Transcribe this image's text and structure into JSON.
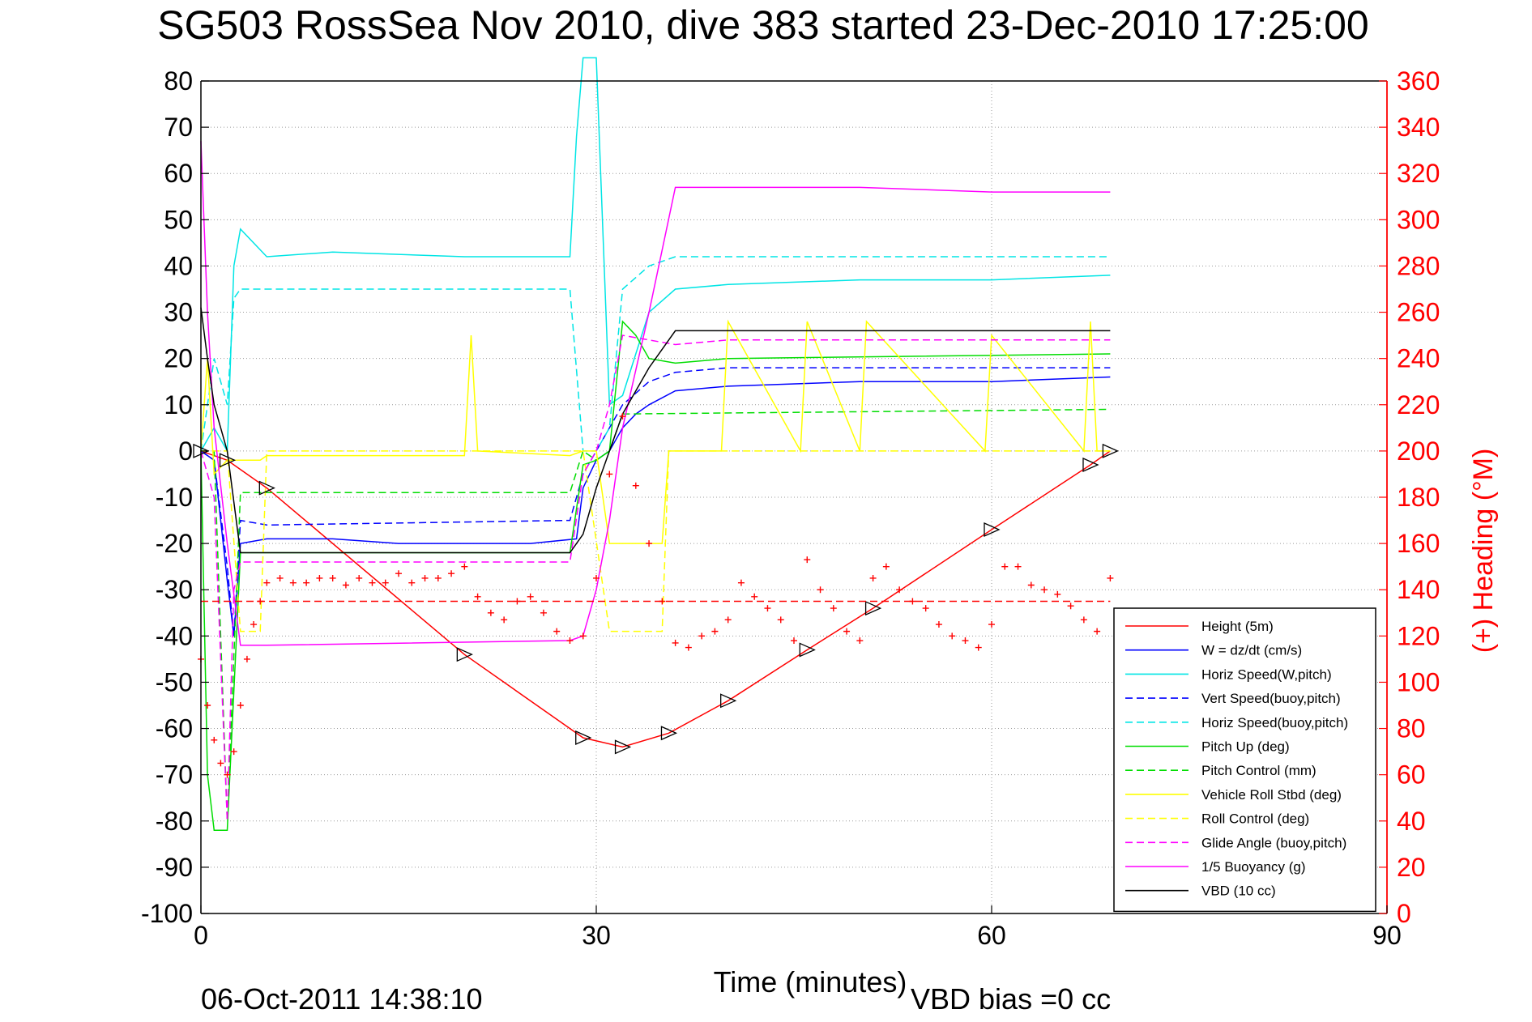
{
  "title": "SG503 RossSea Nov 2010, dive 383 started 23-Dec-2010 17:25:00",
  "footer": {
    "timestamp": "06-Oct-2011 14:38:10",
    "vbd_bias": "VBD bias =0 cc"
  },
  "chart_data": {
    "type": "line",
    "xlabel": "Time (minutes)",
    "ylabel_left": "",
    "ylabel_right": "(+) Heading (°M)",
    "xlim": [
      0,
      90
    ],
    "ylim_left": [
      -100,
      80
    ],
    "ylim_right": [
      0,
      360
    ],
    "xticks": [
      0,
      30,
      60,
      90
    ],
    "yticks_left": [
      80,
      70,
      60,
      50,
      40,
      30,
      20,
      10,
      0,
      -10,
      -20,
      -30,
      -40,
      -50,
      -60,
      -70,
      -80,
      -90,
      -100
    ],
    "yticks_right": [
      360,
      340,
      320,
      300,
      280,
      260,
      240,
      220,
      200,
      180,
      160,
      140,
      120,
      100,
      80,
      60,
      40,
      20,
      0
    ],
    "grid": true,
    "legend_position": "bottom-right",
    "colors": {
      "red": "#ff0000",
      "blue": "#0000ff",
      "cyan": "#00e5e5",
      "green": "#00dd00",
      "yellow": "#ffff00",
      "magenta": "#ff00ff",
      "black": "#000000"
    },
    "series": [
      {
        "name": "Height (5m)",
        "color": "#ff0000",
        "style": "solid",
        "marker": "triangle",
        "x": [
          0,
          2,
          5,
          20,
          29,
          32,
          35.5,
          40,
          46,
          51,
          60,
          67.5,
          69
        ],
        "y": [
          0,
          -2,
          -8,
          -44,
          -62,
          -64,
          -61,
          -54,
          -43,
          -34,
          -17,
          -3,
          0
        ]
      },
      {
        "name": "W = dz/dt (cm/s)",
        "color": "#0000ff",
        "style": "solid",
        "x": [
          0,
          1,
          2,
          2.5,
          3,
          5,
          10,
          15,
          20,
          25,
          28.5,
          29,
          30,
          31,
          32,
          33,
          34,
          36,
          40,
          50,
          60,
          69
        ],
        "y": [
          0,
          -2,
          -28,
          -40,
          -20,
          -19,
          -19,
          -20,
          -20,
          -20,
          -19,
          -8,
          -2,
          0,
          5,
          8,
          10,
          13,
          14,
          15,
          15,
          16
        ]
      },
      {
        "name": "Horiz Speed(W,pitch)",
        "color": "#00e5e5",
        "style": "solid",
        "x": [
          0,
          1,
          2,
          2.5,
          3,
          5,
          10,
          20,
          28,
          28.5,
          29,
          30,
          31,
          32,
          34,
          36,
          40,
          50,
          60,
          69
        ],
        "y": [
          0,
          5,
          0,
          40,
          48,
          42,
          43,
          42,
          42,
          68,
          85,
          85,
          10,
          12,
          30,
          35,
          36,
          37,
          37,
          38
        ]
      },
      {
        "name": "Vert Speed(buoy,pitch)",
        "color": "#0000ff",
        "style": "dashed",
        "x": [
          0,
          1,
          2,
          2.5,
          3,
          5,
          28,
          29,
          30,
          31,
          32,
          34,
          36,
          40,
          69
        ],
        "y": [
          0,
          -2,
          -25,
          -40,
          -15,
          -16,
          -15,
          -5,
          0,
          5,
          10,
          15,
          17,
          18,
          18
        ]
      },
      {
        "name": "Horiz Speed(buoy,pitch)",
        "color": "#00e5e5",
        "style": "dashed",
        "x": [
          0,
          1,
          2,
          2.5,
          3,
          5,
          28,
          29,
          30,
          31,
          32,
          34,
          36,
          40,
          69
        ],
        "y": [
          0,
          20,
          10,
          33,
          35,
          35,
          35,
          0,
          0,
          5,
          35,
          40,
          42,
          42,
          42
        ]
      },
      {
        "name": "Pitch Up (deg)",
        "color": "#00dd00",
        "style": "solid",
        "x": [
          0,
          0.5,
          1,
          2,
          3,
          5,
          28,
          29,
          30,
          31,
          32,
          33,
          34,
          36,
          40,
          69
        ],
        "y": [
          0,
          -70,
          -82,
          -82,
          -22,
          -22,
          -22,
          -3,
          -2,
          0,
          28,
          25,
          20,
          19,
          20,
          21
        ]
      },
      {
        "name": "Pitch Control (mm)",
        "color": "#00dd00",
        "style": "dashed",
        "x": [
          0,
          1,
          2,
          3,
          5,
          28,
          29,
          30,
          31,
          32,
          69
        ],
        "y": [
          0,
          0,
          -80,
          -9,
          -9,
          -9,
          0,
          -2,
          0,
          8,
          9
        ]
      },
      {
        "name": "Vehicle Roll Stbd (deg)",
        "color": "#ffff00",
        "style": "solid",
        "x": [
          0,
          0.5,
          1,
          2,
          4.5,
          5,
          20,
          20.5,
          21,
          28,
          29,
          30,
          31,
          32,
          35,
          35.5,
          36,
          39.5,
          40,
          45.5,
          46,
          50,
          50.5,
          59.5,
          60,
          67,
          67.5,
          68,
          69
        ],
        "y": [
          0,
          20,
          -5,
          -2,
          -2,
          -1,
          -1,
          25,
          0,
          -1,
          0,
          0,
          -20,
          -20,
          -20,
          0,
          0,
          0,
          28,
          0,
          28,
          0,
          28,
          0,
          25,
          0,
          28,
          0,
          0
        ]
      },
      {
        "name": "Roll Control (deg)",
        "color": "#ffff00",
        "style": "dashed",
        "x": [
          0,
          2,
          3,
          4.5,
          5,
          28,
          29,
          31,
          32,
          35,
          35.5,
          69
        ],
        "y": [
          0,
          0,
          -39,
          -39,
          0,
          0,
          0,
          -39,
          -39,
          -39,
          0,
          0
        ]
      },
      {
        "name": "Glide Angle (buoy,pitch)",
        "color": "#ff00ff",
        "style": "dashed",
        "x": [
          0,
          1,
          2,
          2.5,
          3,
          5,
          28,
          29,
          30,
          31,
          32,
          34,
          36,
          40,
          69
        ],
        "y": [
          0,
          -10,
          -80,
          -30,
          -24,
          -24,
          -24,
          -5,
          0,
          10,
          25,
          24,
          23,
          24,
          24
        ]
      },
      {
        "name": "1/5 Buoyancy (g)",
        "color": "#ff00ff",
        "style": "solid",
        "x": [
          0,
          0.5,
          1,
          2,
          3,
          5,
          28,
          29,
          30,
          31,
          32,
          34,
          36,
          40,
          50,
          60,
          69
        ],
        "y": [
          67,
          30,
          5,
          -20,
          -42,
          -42,
          -41,
          -40,
          -30,
          -15,
          5,
          30,
          57,
          57,
          57,
          56,
          56
        ]
      },
      {
        "name": "VBD (10 cc)",
        "color": "#000000",
        "style": "solid",
        "x": [
          0,
          0.5,
          1,
          2,
          3,
          5,
          28,
          29,
          30,
          31,
          32,
          34,
          36,
          40,
          69
        ],
        "y": [
          31,
          20,
          10,
          0,
          -22,
          -22,
          -22,
          -18,
          -8,
          0,
          8,
          18,
          26,
          26,
          26
        ]
      }
    ],
    "heading": {
      "name": "Heading",
      "color": "#ff0000",
      "marker": "plus",
      "target_heading": 135,
      "x": [
        0,
        0.5,
        1,
        1.5,
        2,
        2.5,
        3,
        3.5,
        4,
        4.5,
        5,
        6,
        7,
        8,
        9,
        10,
        11,
        12,
        13,
        14,
        15,
        16,
        17,
        18,
        19,
        20,
        21,
        22,
        23,
        24,
        25,
        26,
        27,
        28,
        29,
        30,
        31,
        32,
        33,
        34,
        35,
        36,
        37,
        38,
        39,
        40,
        41,
        42,
        43,
        44,
        45,
        46,
        47,
        48,
        49,
        50,
        51,
        52,
        53,
        54,
        55,
        56,
        57,
        58,
        59,
        60,
        61,
        62,
        63,
        64,
        65,
        66,
        67,
        68,
        69
      ],
      "y": [
        110,
        90,
        75,
        65,
        60,
        70,
        90,
        110,
        125,
        135,
        143,
        145,
        143,
        143,
        145,
        145,
        142,
        145,
        143,
        143,
        147,
        143,
        145,
        145,
        147,
        150,
        137,
        130,
        127,
        135,
        137,
        130,
        122,
        118,
        120,
        145,
        190,
        215,
        185,
        160,
        135,
        117,
        115,
        120,
        122,
        127,
        143,
        137,
        132,
        127,
        118,
        153,
        140,
        132,
        122,
        118,
        145,
        150,
        140,
        135,
        132,
        125,
        120,
        118,
        115,
        125,
        150,
        150,
        142,
        140,
        138,
        133,
        127,
        122,
        145
      ]
    }
  }
}
